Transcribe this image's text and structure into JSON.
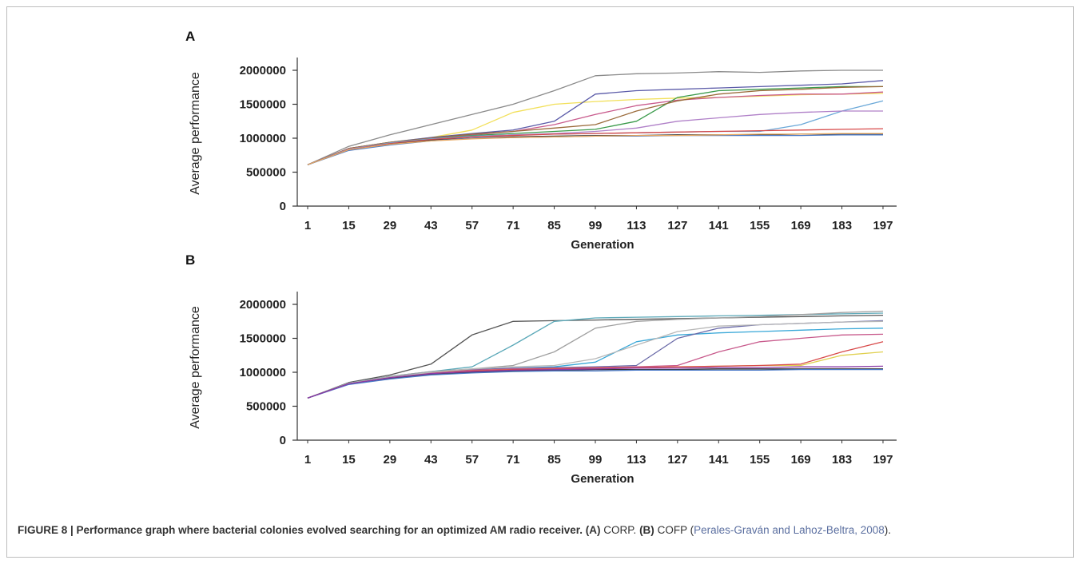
{
  "figure": {
    "caption_label": "FIGURE 8 | Performance graph where bacterial colonies evolved searching for an optimized AM radio receiver.",
    "caption_a_tag": "(A)",
    "caption_a_text": "CORP.",
    "caption_b_tag": "(B)",
    "caption_b_text": "COFP (",
    "caption_citation": "Perales-Graván and Lahoz-Beltra, 2008",
    "caption_end": ")."
  },
  "chart_data": [
    {
      "type": "line",
      "panel": "A",
      "xlabel": "Generation",
      "ylabel": "Average performance",
      "xticks": [
        "1",
        "15",
        "29",
        "43",
        "57",
        "71",
        "85",
        "99",
        "113",
        "127",
        "141",
        "155",
        "169",
        "183",
        "197"
      ],
      "xlim": [
        1,
        200
      ],
      "yticks": [
        "0",
        "500000",
        "1000000",
        "1500000",
        "2000000"
      ],
      "ylim": [
        0,
        2000000
      ],
      "grid": false,
      "legend": "none",
      "series": [
        {
          "color": "#8a8a8a",
          "x": [
            1,
            15,
            29,
            43,
            57,
            71,
            85,
            99,
            113,
            127,
            141,
            155,
            169,
            183,
            197
          ],
          "y": [
            610000,
            880000,
            1050000,
            1200000,
            1350000,
            1500000,
            1700000,
            1920000,
            1950000,
            1960000,
            1980000,
            1970000,
            1990000,
            2000000,
            2000000
          ]
        },
        {
          "color": "#f2e05a",
          "x": [
            1,
            15,
            29,
            43,
            57,
            71,
            85,
            99,
            113,
            127,
            141,
            155,
            169,
            183,
            197
          ],
          "y": [
            610000,
            850000,
            940000,
            1010000,
            1120000,
            1380000,
            1500000,
            1540000,
            1570000,
            1590000,
            1600000,
            1620000,
            1640000,
            1650000,
            1660000
          ]
        },
        {
          "color": "#5a5aa8",
          "x": [
            1,
            15,
            29,
            43,
            57,
            71,
            85,
            99,
            113,
            127,
            141,
            155,
            169,
            183,
            197
          ],
          "y": [
            610000,
            850000,
            940000,
            1010000,
            1070000,
            1120000,
            1250000,
            1650000,
            1700000,
            1720000,
            1740000,
            1760000,
            1780000,
            1800000,
            1850000
          ]
        },
        {
          "color": "#c85a8c",
          "x": [
            1,
            15,
            29,
            43,
            57,
            71,
            85,
            99,
            113,
            127,
            141,
            155,
            169,
            183,
            197
          ],
          "y": [
            610000,
            850000,
            930000,
            1000000,
            1050000,
            1100000,
            1200000,
            1350000,
            1480000,
            1560000,
            1600000,
            1630000,
            1650000,
            1650000,
            1680000
          ]
        },
        {
          "color": "#3a9a4a",
          "x": [
            1,
            15,
            29,
            43,
            57,
            71,
            85,
            99,
            113,
            127,
            141,
            155,
            169,
            183,
            197
          ],
          "y": [
            610000,
            840000,
            930000,
            990000,
            1040000,
            1070000,
            1100000,
            1130000,
            1250000,
            1600000,
            1700000,
            1720000,
            1740000,
            1760000,
            1760000
          ]
        },
        {
          "color": "#9a6a3a",
          "x": [
            1,
            15,
            29,
            43,
            57,
            71,
            85,
            99,
            113,
            127,
            141,
            155,
            169,
            183,
            197
          ],
          "y": [
            610000,
            850000,
            940000,
            1000000,
            1060000,
            1100000,
            1150000,
            1200000,
            1400000,
            1550000,
            1650000,
            1700000,
            1720000,
            1750000,
            1760000
          ]
        },
        {
          "color": "#6aa8d8",
          "x": [
            1,
            15,
            29,
            43,
            57,
            71,
            85,
            99,
            113,
            127,
            141,
            155,
            169,
            183,
            197
          ],
          "y": [
            610000,
            840000,
            930000,
            990000,
            1030000,
            1050000,
            1060000,
            1070000,
            1080000,
            1090000,
            1100000,
            1100000,
            1200000,
            1400000,
            1550000
          ]
        },
        {
          "color": "#b080c8",
          "x": [
            1,
            15,
            29,
            43,
            57,
            71,
            85,
            99,
            113,
            127,
            141,
            155,
            169,
            183,
            197
          ],
          "y": [
            610000,
            840000,
            920000,
            980000,
            1020000,
            1050000,
            1070000,
            1100000,
            1150000,
            1250000,
            1300000,
            1350000,
            1380000,
            1400000,
            1400000
          ]
        },
        {
          "color": "#d84a4a",
          "x": [
            1,
            15,
            29,
            43,
            57,
            71,
            85,
            99,
            113,
            127,
            141,
            155,
            169,
            183,
            197
          ],
          "y": [
            610000,
            830000,
            920000,
            980000,
            1020000,
            1040000,
            1060000,
            1070000,
            1080000,
            1090000,
            1100000,
            1110000,
            1120000,
            1130000,
            1140000
          ]
        },
        {
          "color": "#333333",
          "x": [
            1,
            15,
            29,
            43,
            57,
            71,
            85,
            99,
            113,
            127,
            141,
            155,
            169,
            183,
            197
          ],
          "y": [
            610000,
            830000,
            910000,
            970000,
            1000000,
            1020000,
            1030000,
            1040000,
            1040000,
            1050000,
            1050000,
            1050000,
            1060000,
            1060000,
            1060000
          ]
        },
        {
          "color": "#4a7ac8",
          "x": [
            1,
            15,
            29,
            43,
            57,
            71,
            85,
            99,
            113,
            127,
            141,
            155,
            169,
            183,
            197
          ],
          "y": [
            610000,
            820000,
            900000,
            960000,
            1000000,
            1010000,
            1020000,
            1030000,
            1030000,
            1040000,
            1040000,
            1040000,
            1040000,
            1050000,
            1050000
          ]
        },
        {
          "color": "#e8a860",
          "x": [
            1,
            15,
            29,
            43,
            57,
            71,
            85,
            99,
            113,
            127,
            141,
            155,
            169,
            183,
            197
          ],
          "y": [
            610000,
            830000,
            910000,
            960000,
            990000,
            1010000,
            1020000,
            1030000,
            1040000,
            1040000,
            1050000,
            1060000,
            1060000,
            1070000,
            1070000
          ]
        }
      ]
    },
    {
      "type": "line",
      "panel": "B",
      "xlabel": "Generation",
      "ylabel": "Average performance",
      "xticks": [
        "1",
        "15",
        "29",
        "43",
        "57",
        "71",
        "85",
        "99",
        "113",
        "127",
        "141",
        "155",
        "169",
        "183",
        "197"
      ],
      "xlim": [
        1,
        200
      ],
      "yticks": [
        "0",
        "500000",
        "1000000",
        "1500000",
        "2000000"
      ],
      "ylim": [
        0,
        2000000
      ],
      "grid": false,
      "legend": "none",
      "series": [
        {
          "color": "#555555",
          "x": [
            1,
            15,
            29,
            43,
            57,
            71,
            85,
            99,
            113,
            127,
            141,
            155,
            169,
            183,
            197
          ],
          "y": [
            620000,
            850000,
            960000,
            1120000,
            1550000,
            1750000,
            1760000,
            1770000,
            1780000,
            1790000,
            1800000,
            1810000,
            1820000,
            1830000,
            1840000
          ]
        },
        {
          "color": "#5aa8b8",
          "x": [
            1,
            15,
            29,
            43,
            57,
            71,
            85,
            99,
            113,
            127,
            141,
            155,
            169,
            183,
            197
          ],
          "y": [
            620000,
            840000,
            940000,
            1010000,
            1080000,
            1400000,
            1750000,
            1800000,
            1810000,
            1820000,
            1830000,
            1840000,
            1850000,
            1860000,
            1870000
          ]
        },
        {
          "color": "#a0a0a0",
          "x": [
            1,
            15,
            29,
            43,
            57,
            71,
            85,
            99,
            113,
            127,
            141,
            155,
            169,
            183,
            197
          ],
          "y": [
            620000,
            840000,
            940000,
            1010000,
            1050000,
            1100000,
            1300000,
            1650000,
            1750000,
            1780000,
            1800000,
            1820000,
            1850000,
            1880000,
            1900000
          ]
        },
        {
          "color": "#3aa8d8",
          "x": [
            1,
            15,
            29,
            43,
            57,
            71,
            85,
            99,
            113,
            127,
            141,
            155,
            169,
            183,
            197
          ],
          "y": [
            620000,
            840000,
            930000,
            1000000,
            1040000,
            1060000,
            1080000,
            1150000,
            1450000,
            1550000,
            1580000,
            1600000,
            1620000,
            1640000,
            1650000
          ]
        },
        {
          "color": "#6a6aa8",
          "x": [
            1,
            15,
            29,
            43,
            57,
            71,
            85,
            99,
            113,
            127,
            141,
            155,
            169,
            183,
            197
          ],
          "y": [
            620000,
            840000,
            930000,
            1000000,
            1040000,
            1060000,
            1070000,
            1080000,
            1100000,
            1500000,
            1650000,
            1700000,
            1720000,
            1740000,
            1760000
          ]
        },
        {
          "color": "#c85a8c",
          "x": [
            1,
            15,
            29,
            43,
            57,
            71,
            85,
            99,
            113,
            127,
            141,
            155,
            169,
            183,
            197
          ],
          "y": [
            620000,
            830000,
            920000,
            990000,
            1030000,
            1050000,
            1060000,
            1070000,
            1080000,
            1100000,
            1300000,
            1450000,
            1500000,
            1550000,
            1560000
          ]
        },
        {
          "color": "#b8b8b8",
          "x": [
            1,
            15,
            29,
            43,
            57,
            71,
            85,
            99,
            113,
            127,
            141,
            155,
            169,
            183,
            197
          ],
          "y": [
            620000,
            840000,
            930000,
            1000000,
            1050000,
            1080000,
            1100000,
            1200000,
            1400000,
            1600000,
            1680000,
            1700000,
            1720000,
            1740000,
            1750000
          ]
        },
        {
          "color": "#e0d050",
          "x": [
            1,
            15,
            29,
            43,
            57,
            71,
            85,
            99,
            113,
            127,
            141,
            155,
            169,
            183,
            197
          ],
          "y": [
            620000,
            830000,
            920000,
            980000,
            1020000,
            1040000,
            1050000,
            1060000,
            1070000,
            1080000,
            1090000,
            1100000,
            1100000,
            1250000,
            1300000
          ]
        },
        {
          "color": "#d84a4a",
          "x": [
            1,
            15,
            29,
            43,
            57,
            71,
            85,
            99,
            113,
            127,
            141,
            155,
            169,
            183,
            197
          ],
          "y": [
            620000,
            830000,
            920000,
            980000,
            1020000,
            1040000,
            1050000,
            1060000,
            1070000,
            1080000,
            1090000,
            1100000,
            1120000,
            1300000,
            1450000
          ]
        },
        {
          "color": "#333333",
          "x": [
            1,
            15,
            29,
            43,
            57,
            71,
            85,
            99,
            113,
            127,
            141,
            155,
            169,
            183,
            197
          ],
          "y": [
            620000,
            830000,
            910000,
            970000,
            1000000,
            1020000,
            1030000,
            1040000,
            1040000,
            1040000,
            1050000,
            1050000,
            1050000,
            1050000,
            1050000
          ]
        },
        {
          "color": "#4a7ac8",
          "x": [
            1,
            15,
            29,
            43,
            57,
            71,
            85,
            99,
            113,
            127,
            141,
            155,
            169,
            183,
            197
          ],
          "y": [
            620000,
            820000,
            900000,
            960000,
            990000,
            1010000,
            1020000,
            1020000,
            1030000,
            1030000,
            1030000,
            1030000,
            1040000,
            1040000,
            1040000
          ]
        },
        {
          "color": "#8a3aa8",
          "x": [
            1,
            15,
            29,
            43,
            57,
            71,
            85,
            99,
            113,
            127,
            141,
            155,
            169,
            183,
            197
          ],
          "y": [
            620000,
            830000,
            920000,
            980000,
            1010000,
            1030000,
            1040000,
            1050000,
            1060000,
            1060000,
            1070000,
            1070000,
            1080000,
            1080000,
            1090000
          ]
        }
      ]
    }
  ]
}
